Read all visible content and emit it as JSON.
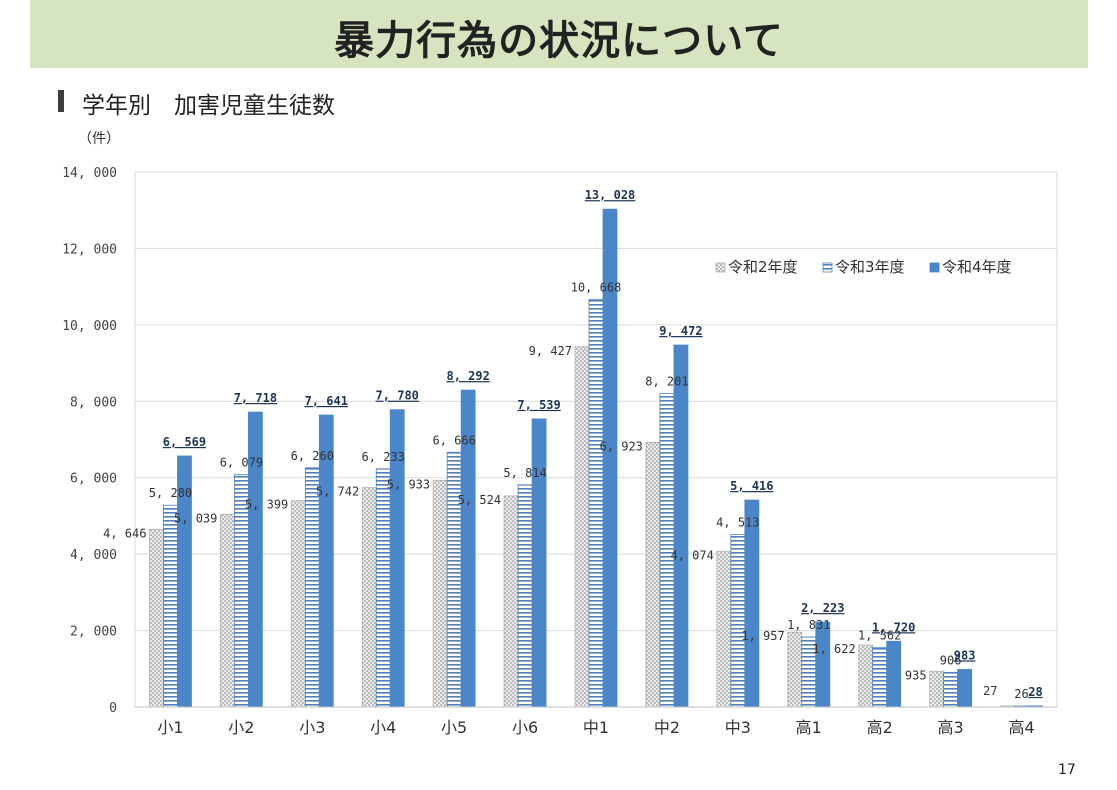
{
  "header": {
    "title": "暴力行為の状況について"
  },
  "section": {
    "title": "学年別　加害児童生徒数"
  },
  "page_number": "17",
  "colors": {
    "title_band": "#d6e4bf",
    "r2": "#c8c8c8",
    "r3": "#4f81bd",
    "r4": "#4a86c8"
  },
  "chart_data": {
    "type": "bar",
    "unit_label": "（件）",
    "categories": [
      "小1",
      "小2",
      "小3",
      "小4",
      "小5",
      "小6",
      "中1",
      "中2",
      "中3",
      "高1",
      "高2",
      "高3",
      "高4"
    ],
    "ylim": [
      0,
      14000
    ],
    "y_ticks": [
      0,
      2000,
      4000,
      6000,
      8000,
      10000,
      12000,
      14000
    ],
    "y_tick_labels": [
      "0",
      "2, 000",
      "4, 000",
      "6, 000",
      "8, 000",
      "10, 000",
      "12, 000",
      "14, 000"
    ],
    "grid": true,
    "legend_position": "top-right",
    "series": [
      {
        "name": "令和2年度",
        "pattern": "dotted-gray",
        "values": [
          4646,
          5039,
          5399,
          5742,
          5933,
          5524,
          9427,
          6923,
          4074,
          1957,
          1622,
          935,
          27
        ],
        "labels": [
          "4, 646",
          "5, 039",
          "5, 399",
          "5, 742",
          "5, 933",
          "5, 524",
          "9, 427",
          "6, 923",
          "4, 074",
          "1, 957",
          "1, 622",
          "935",
          "27"
        ]
      },
      {
        "name": "令和3年度",
        "pattern": "horizontal-stripes-blue",
        "values": [
          5280,
          6079,
          6260,
          6233,
          6666,
          5814,
          10668,
          8201,
          4513,
          1831,
          1562,
          906,
          26
        ],
        "labels": [
          "5, 280",
          "6, 079",
          "6, 260",
          "6, 233",
          "6, 666",
          "5, 814",
          "10, 668",
          "8, 201",
          "4, 513",
          "1, 831",
          "1, 562",
          "906",
          "26"
        ]
      },
      {
        "name": "令和4年度",
        "pattern": "solid-blue",
        "values": [
          6569,
          7718,
          7641,
          7780,
          8292,
          7539,
          13028,
          9472,
          5416,
          2223,
          1720,
          983,
          28
        ],
        "labels": [
          "6, 569",
          "7, 718",
          "7, 641",
          "7, 780",
          "8, 292",
          "7, 539",
          "13, 028",
          "9, 472",
          "5, 416",
          "2, 223",
          "1, 720",
          "983",
          "28"
        ]
      }
    ]
  }
}
